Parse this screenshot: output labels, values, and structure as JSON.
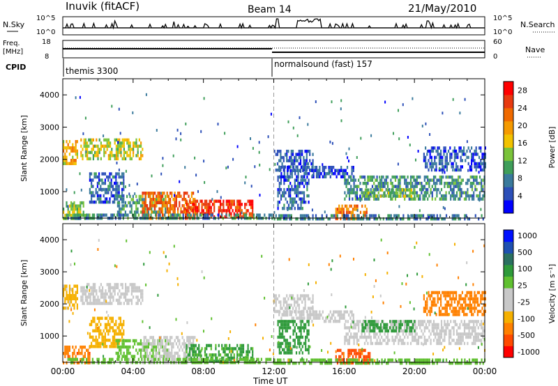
{
  "header": {
    "station": "Inuvik (fitACF)",
    "beam": "Beam 14",
    "date": "21/May/2010"
  },
  "top_panels": {
    "nsky_label": "N.Sky",
    "nsky_ticks": [
      "10^5",
      "10^0"
    ],
    "nsearch_label": "N.Search",
    "nsearch_ticks": [
      "10^5",
      "10^0"
    ],
    "freq_label": "Freq.",
    "freq_unit": "[MHz]",
    "freq_ticks": [
      "18",
      "8"
    ],
    "nave_label": "Nave",
    "nave_ticks": [
      "60",
      "0"
    ],
    "cpid_label": "CPID",
    "cpid_segments": [
      {
        "name": "themis 3300",
        "start_hour": 0
      },
      {
        "name": "normalsound (fast) 157",
        "start_hour": 12
      }
    ]
  },
  "chart_data": [
    {
      "type": "heatmap",
      "panel": "power",
      "xlabel": "Time UT",
      "ylabel": "Slant Range [km]",
      "x_ticks": [
        "00:00",
        "04:00",
        "08:00",
        "12:00",
        "16:00",
        "20:00",
        "00:00"
      ],
      "xlim_hours": [
        0,
        24
      ],
      "ylim": [
        180,
        4500
      ],
      "y_ticks": [
        1000,
        2000,
        3000,
        4000
      ],
      "colorbar_label": "Power [dB]",
      "colorbar_ticks": [
        "4",
        "8",
        "12",
        "16",
        "20",
        "24",
        "28"
      ],
      "colorbar_range": [
        0,
        30
      ],
      "colormap": [
        "#0000ff",
        "#2c4fb8",
        "#3a7a9c",
        "#3f9e5a",
        "#7ac33a",
        "#f2c200",
        "#f59a00",
        "#f06a00",
        "#e83a10",
        "#ff0000"
      ],
      "regions": [
        {
          "t0": 0.0,
          "t1": 1.3,
          "r0": 180,
          "r1": 700,
          "v": 14
        },
        {
          "t0": 0.0,
          "t1": 0.8,
          "r0": 1900,
          "r1": 2600,
          "v": 18
        },
        {
          "t0": 1.0,
          "t1": 4.5,
          "r0": 2000,
          "r1": 2650,
          "v": 15
        },
        {
          "t0": 1.5,
          "t1": 3.5,
          "r0": 700,
          "r1": 1600,
          "v": 6
        },
        {
          "t0": 3.0,
          "t1": 6.0,
          "r0": 400,
          "r1": 900,
          "v": 10
        },
        {
          "t0": 4.5,
          "t1": 7.5,
          "r0": 180,
          "r1": 1000,
          "v": 23
        },
        {
          "t0": 7.0,
          "t1": 10.8,
          "r0": 180,
          "r1": 750,
          "v": 26
        },
        {
          "t0": 0.0,
          "t1": 12.0,
          "r0": 180,
          "r1": 320,
          "v": 9
        },
        {
          "t0": 12.0,
          "t1": 14.2,
          "r0": 1650,
          "r1": 2300,
          "v": 5
        },
        {
          "t0": 12.3,
          "t1": 16.5,
          "r0": 1500,
          "r1": 1800,
          "v": 5
        },
        {
          "t0": 12.2,
          "t1": 14.0,
          "r0": 500,
          "r1": 1500,
          "v": 6
        },
        {
          "t0": 15.5,
          "t1": 17.5,
          "r0": 180,
          "r1": 600,
          "v": 22
        },
        {
          "t0": 16.0,
          "t1": 24.0,
          "r0": 800,
          "r1": 1500,
          "v": 9
        },
        {
          "t0": 17.0,
          "t1": 20.0,
          "r0": 900,
          "r1": 1100,
          "v": 14
        },
        {
          "t0": 20.5,
          "t1": 24.0,
          "r0": 1700,
          "r1": 2400,
          "v": 5
        },
        {
          "t0": 12.0,
          "t1": 24.0,
          "r0": 180,
          "r1": 300,
          "v": 8
        }
      ]
    },
    {
      "type": "heatmap",
      "panel": "velocity",
      "xlabel": "Time UT",
      "ylabel": "Slant Range [km]",
      "x_ticks": [
        "00:00",
        "04:00",
        "08:00",
        "12:00",
        "16:00",
        "20:00",
        "00:00"
      ],
      "xlim_hours": [
        0,
        24
      ],
      "ylim": [
        180,
        4500
      ],
      "y_ticks": [
        1000,
        2000,
        3000,
        4000
      ],
      "colorbar_label": "Velocity [m s⁻¹]",
      "colorbar_ticks": [
        "1000",
        "500",
        "100",
        "25",
        "-25",
        "-100",
        "-500",
        "-1000"
      ],
      "colormap": [
        "#ff0000",
        "#ff4a00",
        "#ff8000",
        "#f5b000",
        "#c8c8c8",
        "#c8c8c8",
        "#60c030",
        "#2e9a3a",
        "#2a7060",
        "#1e50b0",
        "#0010ff"
      ],
      "regions": [
        {
          "t0": 0.0,
          "t1": 1.5,
          "r0": 180,
          "r1": 700,
          "v": -250
        },
        {
          "t0": 0.0,
          "t1": 0.8,
          "r0": 1900,
          "r1": 2600,
          "v": -40
        },
        {
          "t0": 1.0,
          "t1": 4.5,
          "r0": 2000,
          "r1": 2650,
          "v": 0
        },
        {
          "t0": 1.5,
          "t1": 3.5,
          "r0": 700,
          "r1": 1600,
          "v": -60
        },
        {
          "t0": 3.0,
          "t1": 6.0,
          "r0": 400,
          "r1": 900,
          "v": 60
        },
        {
          "t0": 4.5,
          "t1": 7.5,
          "r0": 180,
          "r1": 1000,
          "v": 0
        },
        {
          "t0": 7.0,
          "t1": 10.8,
          "r0": 180,
          "r1": 750,
          "v": 120
        },
        {
          "t0": 0.0,
          "t1": 12.0,
          "r0": 180,
          "r1": 320,
          "v": 40
        },
        {
          "t0": 12.0,
          "t1": 14.2,
          "r0": 1650,
          "r1": 2300,
          "v": 0
        },
        {
          "t0": 12.3,
          "t1": 16.5,
          "r0": 1500,
          "r1": 1800,
          "v": 0
        },
        {
          "t0": 12.2,
          "t1": 14.0,
          "r0": 500,
          "r1": 1500,
          "v": 150
        },
        {
          "t0": 15.5,
          "t1": 17.5,
          "r0": 180,
          "r1": 600,
          "v": -400
        },
        {
          "t0": 16.0,
          "t1": 24.0,
          "r0": 800,
          "r1": 1500,
          "v": 0
        },
        {
          "t0": 17.0,
          "t1": 20.0,
          "r0": 1200,
          "r1": 1500,
          "v": 150
        },
        {
          "t0": 20.5,
          "t1": 24.0,
          "r0": 1700,
          "r1": 2400,
          "v": -150
        },
        {
          "t0": 12.0,
          "t1": 24.0,
          "r0": 180,
          "r1": 300,
          "v": 60
        }
      ]
    }
  ]
}
